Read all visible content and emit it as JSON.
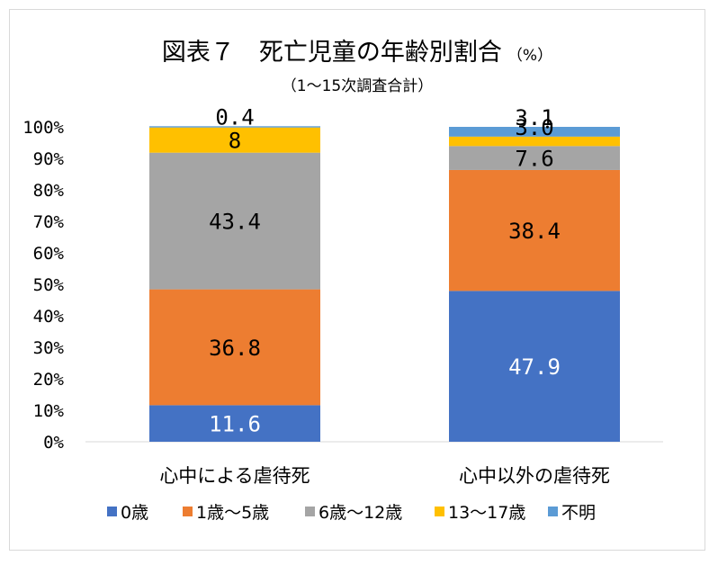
{
  "chart_data": {
    "type": "bar",
    "stacked": true,
    "percent": true,
    "title": "図表７　死亡児童の年齢別割合",
    "title_unit": "（%）",
    "subtitle": "（1〜15次調査合計）",
    "categories": [
      "心中による虐待死",
      "心中以外の虐待死"
    ],
    "y_ticks": [
      "0%",
      "10%",
      "20%",
      "30%",
      "40%",
      "50%",
      "60%",
      "70%",
      "80%",
      "90%",
      "100%"
    ],
    "ylim": [
      0,
      100
    ],
    "grid": false,
    "legend_position": "bottom",
    "series": [
      {
        "name": "0歳",
        "color": "#4472c4",
        "values": [
          11.6,
          47.9
        ],
        "labels": [
          "11.6",
          "47.9"
        ],
        "label_color": "#ffffff"
      },
      {
        "name": "1歳〜5歳",
        "color": "#ed7d31",
        "values": [
          36.8,
          38.4
        ],
        "labels": [
          "36.8",
          "38.4"
        ],
        "label_color": "#000000"
      },
      {
        "name": "6歳〜12歳",
        "color": "#a5a5a5",
        "values": [
          43.4,
          7.6
        ],
        "labels": [
          "43.4",
          "7.6"
        ],
        "label_color": "#000000"
      },
      {
        "name": "13〜17歳",
        "color": "#ffc000",
        "values": [
          8,
          3.0
        ],
        "labels": [
          "8",
          "3.0"
        ],
        "label_color": "#000000"
      },
      {
        "name": "不明",
        "color": "#5b9bd5",
        "values": [
          0.4,
          3.1
        ],
        "labels": [
          "0.4",
          "3.1"
        ],
        "label_color": "#000000"
      }
    ]
  }
}
